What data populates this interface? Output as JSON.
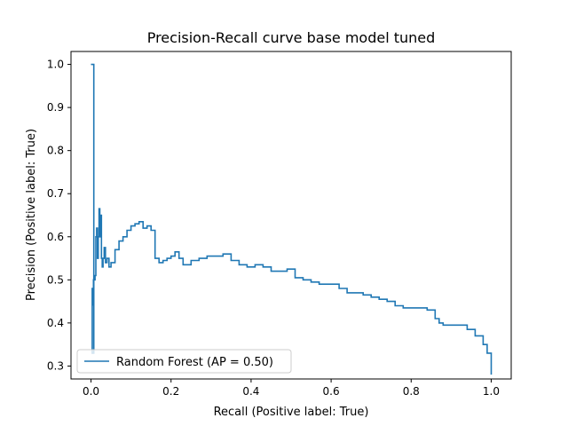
{
  "chart_data": {
    "type": "line",
    "title": "Precision-Recall curve base model tuned",
    "xlabel": "Recall (Positive label: True)",
    "ylabel": "Precision (Positive label: True)",
    "xlim": [
      -0.05,
      1.05
    ],
    "ylim": [
      0.27,
      1.03
    ],
    "xticks": [
      0.0,
      0.2,
      0.4,
      0.6,
      0.8,
      1.0
    ],
    "xtick_labels": [
      "0.0",
      "0.2",
      "0.4",
      "0.6",
      "0.8",
      "1.0"
    ],
    "yticks": [
      0.3,
      0.4,
      0.5,
      0.6,
      0.7,
      0.8,
      0.9,
      1.0
    ],
    "ytick_labels": [
      "0.3",
      "0.4",
      "0.5",
      "0.6",
      "0.7",
      "0.8",
      "0.9",
      "1.0"
    ],
    "grid": false,
    "legend_position": "lower left",
    "series": [
      {
        "name": "Random Forest (AP = 0.50)",
        "color": "#1f77b4",
        "x": [
          0.0,
          0.0,
          0.007,
          0.007,
          0.003,
          0.003,
          0.006,
          0.006,
          0.01,
          0.012,
          0.014,
          0.016,
          0.018,
          0.02,
          0.022,
          0.024,
          0.026,
          0.028,
          0.03,
          0.033,
          0.036,
          0.04,
          0.045,
          0.05,
          0.06,
          0.07,
          0.08,
          0.09,
          0.1,
          0.11,
          0.12,
          0.13,
          0.14,
          0.15,
          0.16,
          0.16,
          0.17,
          0.18,
          0.19,
          0.2,
          0.21,
          0.22,
          0.23,
          0.24,
          0.25,
          0.27,
          0.29,
          0.31,
          0.33,
          0.35,
          0.37,
          0.39,
          0.41,
          0.43,
          0.45,
          0.47,
          0.49,
          0.51,
          0.53,
          0.55,
          0.57,
          0.6,
          0.62,
          0.64,
          0.66,
          0.68,
          0.7,
          0.72,
          0.74,
          0.76,
          0.78,
          0.8,
          0.82,
          0.84,
          0.86,
          0.87,
          0.88,
          0.9,
          0.92,
          0.94,
          0.96,
          0.98,
          0.99,
          1.0,
          1.0
        ],
        "y": [
          1.0,
          1.0,
          1.0,
          0.33,
          0.33,
          0.48,
          0.44,
          0.5,
          0.51,
          0.6,
          0.62,
          0.55,
          0.6,
          0.665,
          0.6,
          0.65,
          0.55,
          0.53,
          0.55,
          0.575,
          0.54,
          0.55,
          0.53,
          0.54,
          0.57,
          0.59,
          0.6,
          0.615,
          0.625,
          0.63,
          0.635,
          0.62,
          0.625,
          0.615,
          0.61,
          0.55,
          0.54,
          0.545,
          0.55,
          0.555,
          0.565,
          0.55,
          0.535,
          0.535,
          0.545,
          0.55,
          0.555,
          0.555,
          0.56,
          0.545,
          0.535,
          0.53,
          0.535,
          0.53,
          0.52,
          0.52,
          0.525,
          0.505,
          0.5,
          0.495,
          0.49,
          0.49,
          0.48,
          0.47,
          0.47,
          0.465,
          0.46,
          0.455,
          0.45,
          0.44,
          0.435,
          0.435,
          0.435,
          0.43,
          0.41,
          0.4,
          0.395,
          0.395,
          0.395,
          0.385,
          0.37,
          0.35,
          0.33,
          0.31,
          0.28
        ]
      }
    ]
  }
}
